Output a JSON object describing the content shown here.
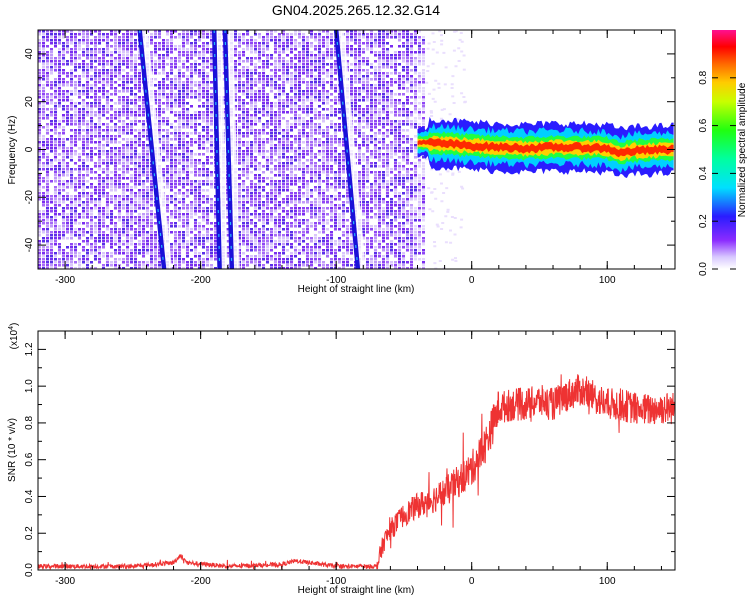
{
  "chart_data": [
    {
      "type": "heatmap",
      "title": "GN04.2025.265.12.32.G14",
      "xlabel": "Height of straight line (km)",
      "ylabel": "Frequency (Hz)",
      "xlim": [
        -320,
        150
      ],
      "ylim": [
        -50,
        50
      ],
      "xticks": [
        -300,
        -200,
        -100,
        0,
        100
      ],
      "yticks": [
        -40,
        -20,
        0,
        20,
        40
      ],
      "noise_region_x": [
        -320,
        -35
      ],
      "streaks": [
        {
          "x_top": -245,
          "x_bottom": -227,
          "name": "streak-1"
        },
        {
          "x_top": -190,
          "x_bottom": -186,
          "name": "streak-2"
        },
        {
          "x_top": -182,
          "x_bottom": -177,
          "name": "streak-3"
        },
        {
          "x_top": -100,
          "x_bottom": -84,
          "name": "streak-4"
        }
      ],
      "signal_band": {
        "x": [
          -40,
          -20,
          0,
          20,
          40,
          60,
          80,
          100,
          110,
          120,
          150
        ],
        "center_hz": [
          3,
          2.5,
          1.5,
          1,
          0.5,
          1,
          0.8,
          0.5,
          -1.5,
          -0.5,
          0
        ]
      },
      "colorbar": {
        "label": "Normalized spectral amplitude",
        "range": [
          0,
          1
        ],
        "ticks": [
          0.0,
          0.2,
          0.4,
          0.6,
          0.8
        ]
      }
    },
    {
      "type": "line",
      "xlabel": "Height of straight line (km)",
      "ylabel": "SNR (10 * v/v)",
      "scale_label": "(x10",
      "scale_exp": "4",
      "color": "#ee3333",
      "xlim": [
        -320,
        150
      ],
      "ylim": [
        0,
        1.3
      ],
      "xticks": [
        -300,
        -200,
        -100,
        0,
        100
      ],
      "yticks": [
        0.0,
        0.2,
        0.4,
        0.6,
        0.8,
        1.0,
        1.2
      ],
      "series": [
        {
          "name": "SNR",
          "x": [
            -320,
            -300,
            -250,
            -220,
            -215,
            -210,
            -180,
            -140,
            -130,
            -100,
            -70,
            -65,
            -60,
            -50,
            -40,
            -30,
            -20,
            -10,
            0,
            10,
            20,
            30,
            40,
            50,
            60,
            70,
            80,
            90,
            100,
            110,
            120,
            130,
            140,
            150
          ],
          "y": [
            0.02,
            0.02,
            0.02,
            0.04,
            0.08,
            0.04,
            0.02,
            0.03,
            0.05,
            0.02,
            0.02,
            0.15,
            0.22,
            0.3,
            0.35,
            0.38,
            0.42,
            0.48,
            0.55,
            0.68,
            0.88,
            0.9,
            0.9,
            0.92,
            0.9,
            0.95,
            0.98,
            0.94,
            0.9,
            0.9,
            0.88,
            0.87,
            0.88,
            0.88
          ]
        }
      ]
    }
  ]
}
